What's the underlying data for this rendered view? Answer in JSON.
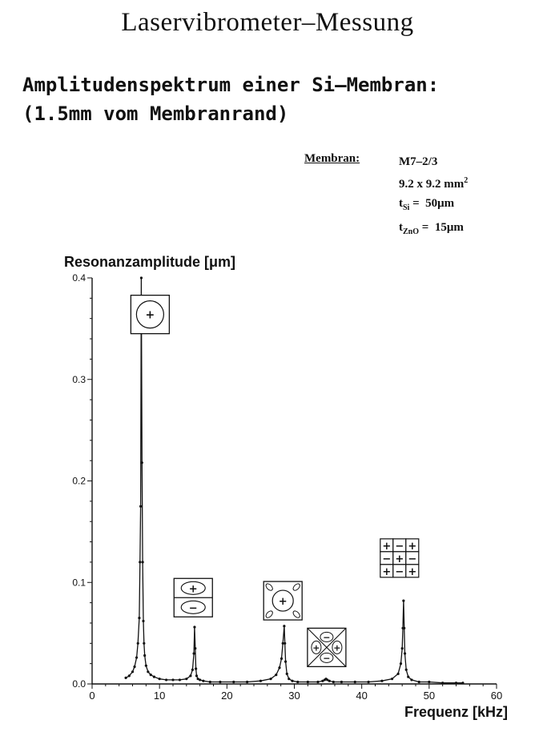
{
  "header": {
    "title": "Laservibrometer–Messung",
    "subtitle_line1": "Amplitudenspektrum einer Si–Membran:",
    "subtitle_line2": "(1.5mm vom Membranrand)"
  },
  "specs": {
    "label": "Membran:",
    "model": "M7–2/3",
    "size": "9.2 x 9.2 mm",
    "size_sup": "2",
    "t_si_sym": "t",
    "t_si_sub": "Si",
    "t_si_val": "=  50μm",
    "t_zno_sym": "t",
    "t_zno_sub": "ZnO",
    "t_zno_val": "=  15μm"
  },
  "chart_data": {
    "type": "line",
    "title": "",
    "xlabel": "Frequenz [kHz]",
    "ylabel": "Resonanzamplitude [μm]",
    "xlim": [
      0,
      60
    ],
    "ylim": [
      0,
      0.4
    ],
    "xticks": [
      0,
      10,
      20,
      30,
      40,
      50,
      60
    ],
    "yticks": [
      0.0,
      0.1,
      0.2,
      0.3,
      0.4
    ],
    "ytick_labels": [
      "0.0",
      "0.1",
      "0.2",
      "0.3",
      "0.4"
    ],
    "grid": false,
    "series": [
      {
        "x": [
          5.0,
          5.5,
          6.0,
          6.3,
          6.6,
          6.8,
          7.0,
          7.1,
          7.2,
          7.3,
          7.4,
          7.5,
          7.6,
          7.7,
          7.8,
          8.0,
          8.3,
          8.7,
          9.2,
          10.0,
          11.0,
          12.0,
          13.0,
          14.0,
          14.6,
          14.9,
          15.1,
          15.2,
          15.3,
          15.4,
          15.5,
          15.7,
          16.0,
          16.5,
          17.5,
          19.0,
          21.0,
          23.0,
          25.0,
          26.5,
          27.3,
          27.8,
          28.1,
          28.3,
          28.5,
          28.6,
          28.7,
          28.9,
          29.2,
          29.7,
          30.5,
          32.0,
          33.5,
          34.2,
          34.5,
          34.7,
          34.9,
          35.2,
          35.8,
          37.0,
          39.0,
          41.0,
          43.0,
          44.5,
          45.4,
          45.8,
          46.0,
          46.1,
          46.2,
          46.3,
          46.4,
          46.6,
          46.9,
          47.4,
          48.5,
          50.0,
          52.0,
          54.0,
          55.0
        ],
        "values": [
          0.006,
          0.008,
          0.012,
          0.017,
          0.026,
          0.04,
          0.065,
          0.12,
          0.175,
          0.4,
          0.218,
          0.12,
          0.062,
          0.04,
          0.028,
          0.018,
          0.012,
          0.009,
          0.007,
          0.005,
          0.004,
          0.004,
          0.004,
          0.005,
          0.008,
          0.014,
          0.03,
          0.056,
          0.035,
          0.015,
          0.008,
          0.005,
          0.004,
          0.003,
          0.002,
          0.002,
          0.002,
          0.002,
          0.003,
          0.005,
          0.009,
          0.016,
          0.025,
          0.04,
          0.057,
          0.04,
          0.022,
          0.01,
          0.005,
          0.003,
          0.002,
          0.002,
          0.002,
          0.003,
          0.004,
          0.005,
          0.004,
          0.003,
          0.002,
          0.002,
          0.002,
          0.002,
          0.003,
          0.005,
          0.01,
          0.02,
          0.035,
          0.055,
          0.082,
          0.055,
          0.03,
          0.014,
          0.007,
          0.004,
          0.002,
          0.002,
          0.001,
          0.001,
          0.001
        ]
      }
    ],
    "mode_icons": [
      {
        "name": "mode-01-icon",
        "x": 8.6,
        "y": 0.364,
        "pattern": "circle-plus"
      },
      {
        "name": "mode-02-icon",
        "x": 15.0,
        "y": 0.085,
        "pattern": "two-lobes-plus-minus"
      },
      {
        "name": "mode-11-icon",
        "x": 28.3,
        "y": 0.082,
        "pattern": "center-plus-four-corner-lobes"
      },
      {
        "name": "mode-cross-icon",
        "x": 34.8,
        "y": 0.036,
        "pattern": "x-cross-quadrants"
      },
      {
        "name": "mode-grid-icon",
        "x": 45.6,
        "y": 0.124,
        "pattern": "grid-3x3-checker"
      }
    ],
    "grid_pattern": [
      [
        "+",
        "−",
        "+"
      ],
      [
        "−",
        "+",
        "−"
      ],
      [
        "+",
        "−",
        "+"
      ]
    ]
  }
}
